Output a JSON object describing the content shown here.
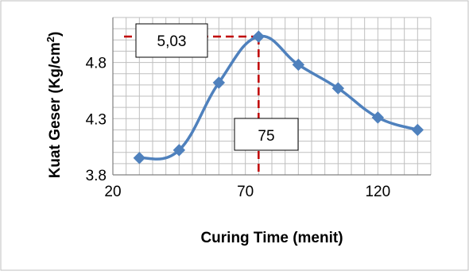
{
  "chart_data": {
    "type": "line",
    "title": "",
    "xlabel": "Curing Time (menit)",
    "ylabel_main": "Kuat Geser (Kg/cm",
    "ylabel_sup": "2",
    "ylabel_close": ")",
    "xlim": [
      20,
      140
    ],
    "ylim": [
      3.8,
      5.2
    ],
    "x_ticks": [
      20,
      70,
      120
    ],
    "x_tick_labels": [
      "20",
      "70",
      "120"
    ],
    "y_ticks": [
      3.8,
      4.3,
      4.8
    ],
    "y_tick_labels": [
      "3.8",
      "4.3",
      "4.8"
    ],
    "grid": true,
    "legend": "none",
    "series": [
      {
        "x": [
          30,
          45,
          60,
          75,
          90,
          105,
          120,
          135
        ],
        "y": [
          3.95,
          4.02,
          4.62,
          5.03,
          4.78,
          4.57,
          4.31,
          4.2
        ]
      }
    ],
    "annotations": {
      "peak_value_label": "5,03",
      "peak_time_label": "75",
      "peak_x": 75,
      "peak_y": 5.03
    },
    "colors": {
      "series": "#4f81bd",
      "reference_lines": "#c00000",
      "grid": "#bfbfbf",
      "axis": "#808080"
    }
  }
}
